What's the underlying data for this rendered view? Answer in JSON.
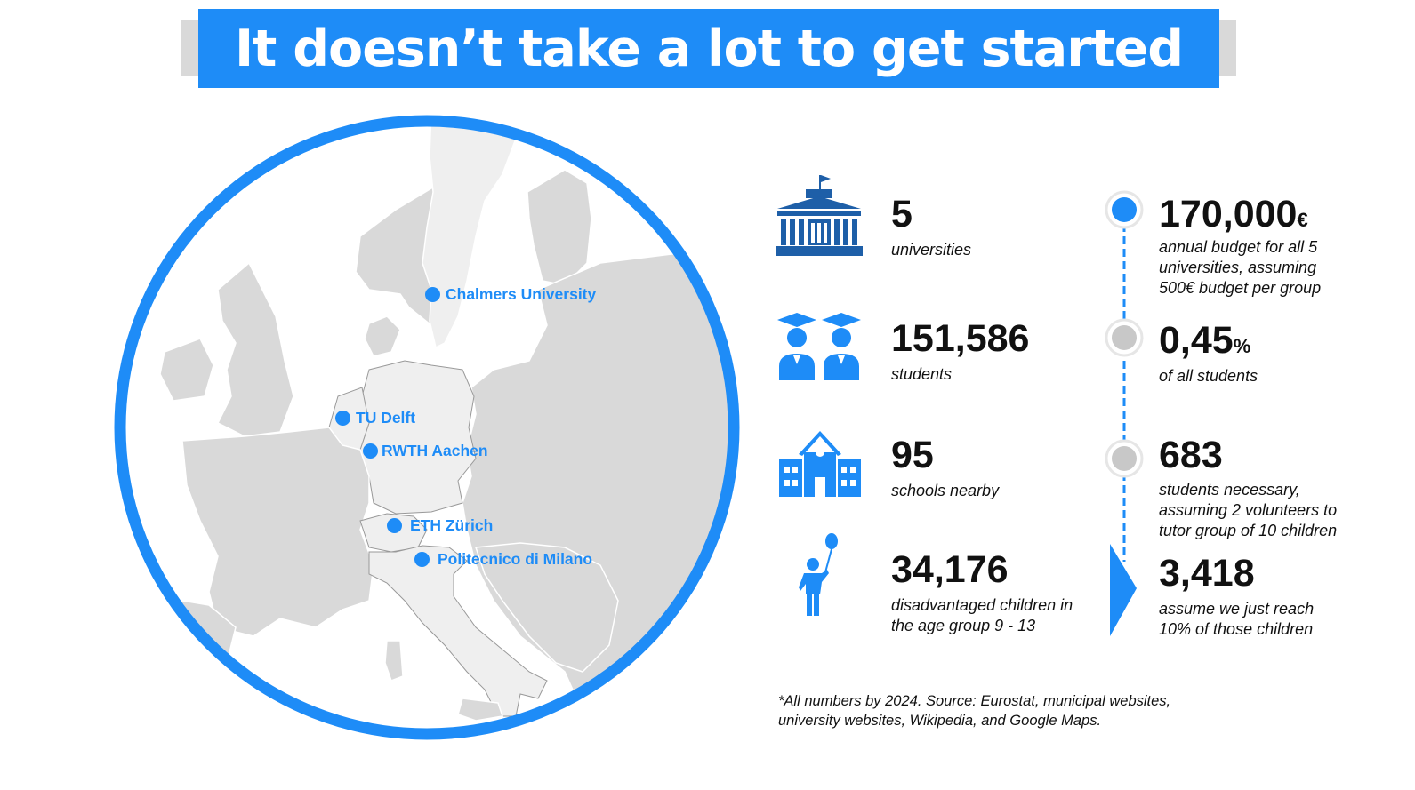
{
  "title": "It doesn’t take a lot to get started",
  "map": {
    "locations": [
      {
        "name": "Chalmers University"
      },
      {
        "name": "TU Delft"
      },
      {
        "name": "RWTH Aachen"
      },
      {
        "name": "ETH Zürich"
      },
      {
        "name": "Politecnico di Milano"
      }
    ]
  },
  "left_stats": [
    {
      "icon": "university-building-icon",
      "value": "5",
      "label": "universities"
    },
    {
      "icon": "graduates-icon",
      "value": "151,586",
      "label": "students"
    },
    {
      "icon": "school-icon",
      "value": "95",
      "label": "schools nearby"
    },
    {
      "icon": "child-with-balloon-icon",
      "value": "34,176",
      "label_line1": "disadvantaged children in",
      "label_line2": "the age group 9 - 13"
    }
  ],
  "right_stats": [
    {
      "value": "170,000",
      "unit": "€",
      "line1": "annual budget for all 5",
      "line2": "universities, assuming",
      "line3": "500€ budget per group"
    },
    {
      "value": "0,45",
      "unit": "%",
      "line1": "of all students"
    },
    {
      "value": "683",
      "line1": "students necessary,",
      "line2": "assuming 2 volunteers to",
      "line3": "tutor group of 10 children"
    },
    {
      "value": "3,418",
      "line1": "assume we just reach",
      "line2": "10% of those children"
    }
  ],
  "footnote": {
    "line1": "*All numbers by 2024. Source: Eurostat, municipal websites,",
    "line2": "university websites, Wikipedia, and Google Maps."
  },
  "colors": {
    "accent": "#1e8cf7",
    "land": "#d9d9d9",
    "land_highlight": "#efefef",
    "marker_grey": "#c8c8c8"
  }
}
